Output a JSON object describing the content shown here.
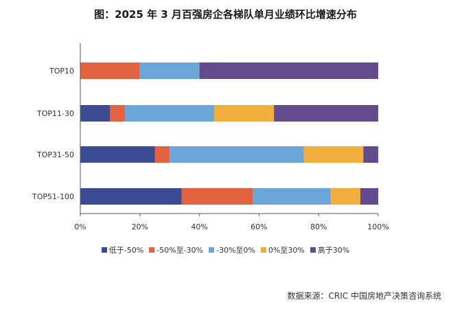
{
  "chart_data": {
    "type": "bar",
    "orientation": "horizontal",
    "stacked": true,
    "title": "图：2025 年 3 月百强房企各梯队单月业绩环比增速分布",
    "categories": [
      "TOP10",
      "TOP11-30",
      "TOP31-50",
      "TOP51-100"
    ],
    "series": [
      {
        "name": "低于-50%",
        "color": "#3a4d94",
        "values": [
          0,
          10,
          25,
          34
        ]
      },
      {
        "name": "-50%至-30%",
        "color": "#e36341",
        "values": [
          20,
          5,
          5,
          24
        ]
      },
      {
        "name": "-30%至0%",
        "color": "#6ba6d9",
        "values": [
          20,
          30,
          45,
          26
        ]
      },
      {
        "name": "0%至30%",
        "color": "#f0ae3d",
        "values": [
          0,
          20,
          20,
          10
        ]
      },
      {
        "name": "高于30%",
        "color": "#624a8c",
        "values": [
          60,
          35,
          5,
          6
        ]
      }
    ],
    "xlim": [
      0,
      100
    ],
    "xticks": [
      "0%",
      "20%",
      "40%",
      "60%",
      "80%",
      "100%"
    ],
    "legend_position": "bottom",
    "grid": false
  },
  "source": "数据来源：CRIC 中国房地产决策咨询系统"
}
